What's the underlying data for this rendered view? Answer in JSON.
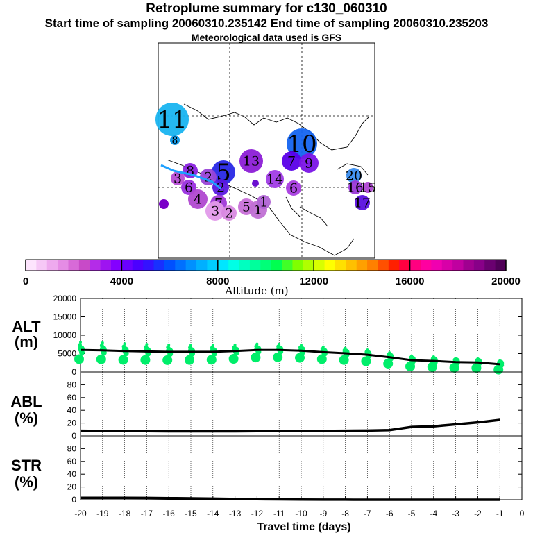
{
  "header": {
    "title": "Retroplume summary for c130_060310",
    "sampling": "Start time of sampling 20060310.235142     End time of sampling 20060310.235203",
    "met": "Meteorological data used is GFS"
  },
  "colors": {
    "scale": [
      "#fde4fd",
      "#f6c8f6",
      "#eeaaee",
      "#e58ce5",
      "#d86ad8",
      "#c84ac8",
      "#b42ce8",
      "#9e14f0",
      "#8400ff",
      "#6a00ff",
      "#4c00ff",
      "#3412ff",
      "#1830ff",
      "#0050ff",
      "#0070ff",
      "#0090ff",
      "#00b0ff",
      "#00ceff",
      "#00e6ff",
      "#00ffe6",
      "#00ffc0",
      "#00ff9c",
      "#00ff78",
      "#00ff50",
      "#40ff28",
      "#80ff00",
      "#b0ff00",
      "#d8ff00",
      "#ffff00",
      "#ffe000",
      "#ffc000",
      "#ffa000",
      "#ff8000",
      "#ff5000",
      "#ff2000",
      "#ff0040",
      "#ff0080",
      "#ff00a0",
      "#f000b0",
      "#d800a8",
      "#c000a0",
      "#a00090",
      "#880088",
      "#6a0070",
      "#500058"
    ],
    "alt_markers": "#00ee6a",
    "line": "#000000"
  },
  "map": {
    "labels": [
      {
        "text": "11",
        "size": "large"
      },
      {
        "text": "8",
        "size": "small"
      },
      {
        "text": "10",
        "size": "large"
      },
      {
        "text": "7",
        "size": "med"
      },
      {
        "text": "9",
        "size": "med"
      },
      {
        "text": "13",
        "size": "med"
      },
      {
        "text": "5",
        "size": "large"
      },
      {
        "text": "14",
        "size": "med"
      },
      {
        "text": "6",
        "size": "med"
      },
      {
        "text": "2",
        "size": "med"
      },
      {
        "text": "8",
        "size": "med"
      },
      {
        "text": "3",
        "size": "med"
      },
      {
        "text": "6",
        "size": "med"
      },
      {
        "text": "2",
        "size": "med"
      },
      {
        "text": "4",
        "size": "med"
      },
      {
        "text": "7",
        "size": "med"
      },
      {
        "text": "3",
        "size": "med"
      },
      {
        "text": "2",
        "size": "med"
      },
      {
        "text": "5",
        "size": "med"
      },
      {
        "text": "1",
        "size": "med"
      },
      {
        "text": "1",
        "size": "med"
      },
      {
        "text": "20",
        "size": "med"
      },
      {
        "text": "16",
        "size": "med"
      },
      {
        "text": "15",
        "size": "med"
      },
      {
        "text": "17",
        "size": "med"
      }
    ]
  },
  "chart_data": [
    {
      "type": "colorbar",
      "title": "Altitude (m)",
      "ticks": [
        "0",
        "4000",
        "8000",
        "12000",
        "16000",
        "20000"
      ],
      "range": [
        0,
        20000
      ]
    },
    {
      "type": "line",
      "panel": "ALT",
      "ylabel_line1": "ALT",
      "ylabel_line2": "(m)",
      "ylim": [
        0,
        20000
      ],
      "yticks": [
        "0",
        "5000",
        "10000",
        "15000",
        "20000"
      ],
      "x": [
        -20,
        -19,
        -18,
        -17,
        -16,
        -15,
        -14,
        -13,
        -12,
        -11,
        -10,
        -9,
        -8,
        -7,
        -6,
        -5,
        -4,
        -3,
        -2,
        -1
      ],
      "values": [
        6000,
        5900,
        5700,
        5600,
        5500,
        5500,
        5500,
        5700,
        6000,
        6000,
        5800,
        5400,
        5100,
        4700,
        4000,
        3200,
        3000,
        2700,
        2600,
        2100
      ]
    },
    {
      "type": "line",
      "panel": "ABL",
      "ylabel_line1": "ABL",
      "ylabel_line2": "(%)",
      "ylim": [
        0,
        100
      ],
      "yticks": [
        "0",
        "20",
        "40",
        "60",
        "80"
      ],
      "x": [
        -20,
        -19,
        -18,
        -17,
        -16,
        -15,
        -14,
        -13,
        -12,
        -11,
        -10,
        -9,
        -8,
        -7,
        -6,
        -5,
        -4,
        -3,
        -2,
        -1
      ],
      "values": [
        8,
        7.8,
        7.5,
        7.3,
        7,
        7,
        7,
        7.1,
        7.3,
        7.5,
        7.6,
        7.8,
        8,
        8.3,
        9,
        14,
        15,
        18,
        21,
        25
      ]
    },
    {
      "type": "line",
      "panel": "STR",
      "ylabel_line1": "STR",
      "ylabel_line2": "(%)",
      "ylim": [
        0,
        100
      ],
      "yticks": [
        "0",
        "20",
        "40",
        "60",
        "80"
      ],
      "x": [
        -20,
        -19,
        -18,
        -17,
        -16,
        -15,
        -14,
        -13,
        -12,
        -11,
        -10,
        -9,
        -8,
        -7,
        -6,
        -5,
        -4,
        -3,
        -2,
        -1
      ],
      "values": [
        3,
        3,
        3,
        2.8,
        2.5,
        2.2,
        1.8,
        1.2,
        0.8,
        0.5,
        0.3,
        0.2,
        0.1,
        0,
        0,
        0,
        0,
        0,
        0,
        0
      ],
      "xlabel": "Travel time (days)",
      "xticks": [
        "-20",
        "-19",
        "-18",
        "-17",
        "-16",
        "-15",
        "-14",
        "-13",
        "-12",
        "-11",
        "-10",
        "-9",
        "-8",
        "-7",
        "-6",
        "-5",
        "-4",
        "-3",
        "-2",
        "-1",
        "0"
      ]
    }
  ]
}
